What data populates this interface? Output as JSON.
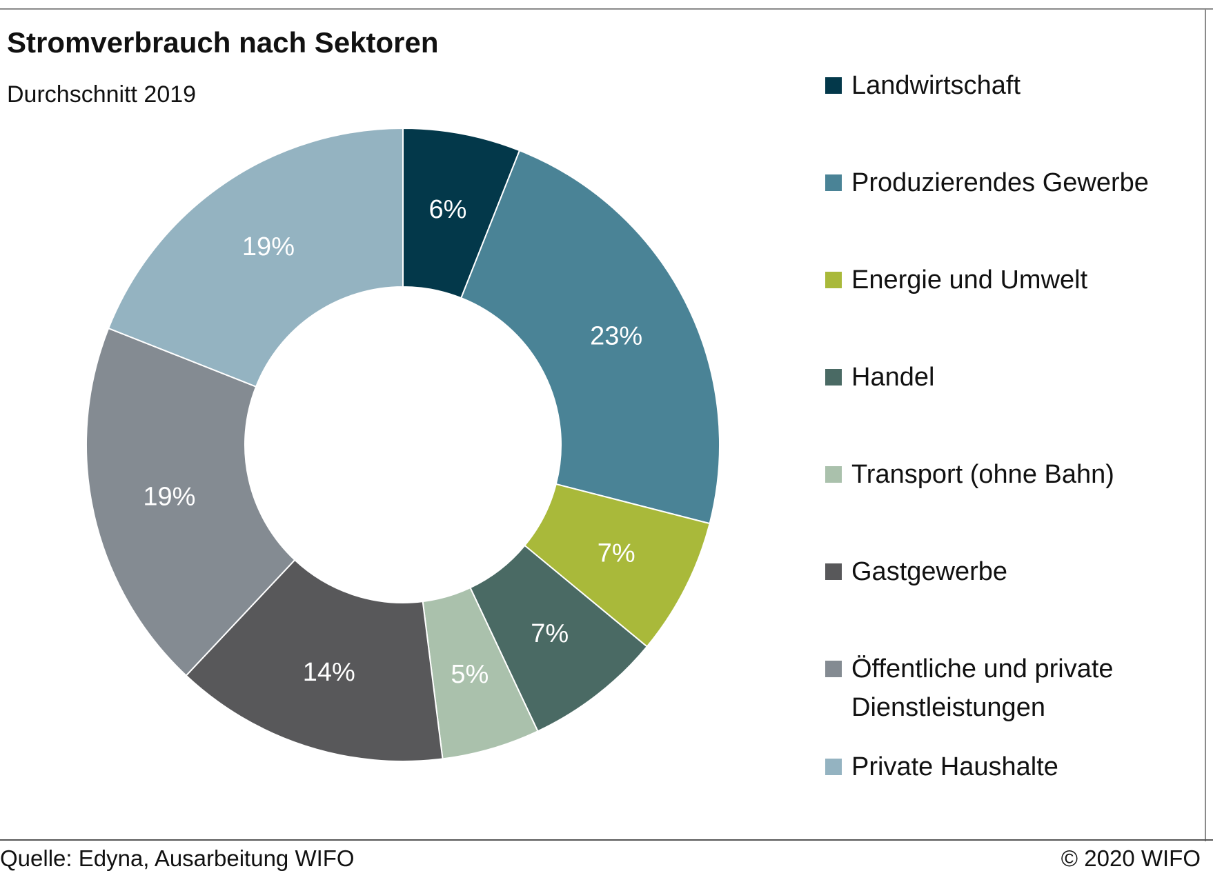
{
  "header": {
    "title": "Stromverbrauch nach Sektoren",
    "subtitle": "Durchschnitt 2019"
  },
  "footer": {
    "source": "Quelle: Edyna, Ausarbeitung WIFO",
    "copyright": "© 2020 WIFO"
  },
  "chart_data": {
    "type": "pie",
    "variant": "donut",
    "title": "Stromverbrauch nach Sektoren",
    "subtitle": "Durchschnitt 2019",
    "legend_placement": "right",
    "categories": [
      "Landwirtschaft",
      "Produzierendes Gewerbe",
      "Energie und Umwelt",
      "Handel",
      "Transport (ohne Bahn)",
      "Gastgewerbe",
      "Öffentliche und private Dienstleistungen",
      "Private Haushalte"
    ],
    "values": [
      6,
      23,
      7,
      7,
      5,
      14,
      19,
      19
    ],
    "value_labels": [
      "6%",
      "23%",
      "7%",
      "7%",
      "5%",
      "14%",
      "19%",
      "19%"
    ],
    "colors": [
      "#03384a",
      "#4a8396",
      "#a9b93a",
      "#4a6a64",
      "#aac1ac",
      "#58585a",
      "#848b92",
      "#94b3c1"
    ],
    "start_angle_deg": 0,
    "direction": "clockwise"
  }
}
